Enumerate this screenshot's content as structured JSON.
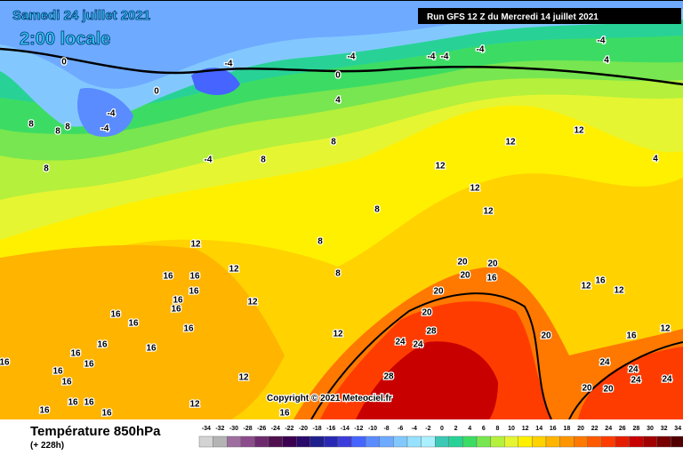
{
  "header": {
    "date": "Samedi 24 juillet 2021",
    "time": "2:00 locale",
    "run": "Run GFS 12 Z du Mercredi 14 juillet 2021"
  },
  "copyright": "Copyright © 2021 Meteociel.fr",
  "legend": {
    "title": "Température 850hPa",
    "subtitle": "(+ 228h)",
    "ticks": [
      -34,
      -32,
      -30,
      -28,
      -26,
      -24,
      -22,
      -20,
      -18,
      -16,
      -14,
      -12,
      -10,
      -8,
      -6,
      -4,
      -2,
      0,
      2,
      4,
      6,
      8,
      10,
      12,
      14,
      16,
      18,
      20,
      22,
      24,
      26,
      28,
      30,
      32,
      34
    ],
    "colors": [
      "#d3d3d3",
      "#b4b4b4",
      "#9e6e9e",
      "#8c4c8c",
      "#6e2a6e",
      "#501050",
      "#3c0050",
      "#2a0a6a",
      "#1e1e8c",
      "#2828b4",
      "#3c3cdc",
      "#4664ff",
      "#5a8cff",
      "#6eaaff",
      "#82c8ff",
      "#96e1ff",
      "#aaf0ff",
      "#3cc8b4",
      "#28d296",
      "#3cdc64",
      "#78e650",
      "#b4f03c",
      "#e6f532",
      "#fff000",
      "#ffd200",
      "#ffb400",
      "#ff9600",
      "#ff7800",
      "#ff5a00",
      "#ff3c00",
      "#e61e00",
      "#c80000",
      "#a00000",
      "#780000",
      "#500000"
    ]
  },
  "map": {
    "contour_labels": [
      0,
      0,
      0,
      -4,
      -4,
      -4,
      -4,
      -4,
      -4,
      -4,
      -4,
      -4,
      4,
      4,
      4,
      8,
      8,
      8,
      8,
      8,
      8,
      8,
      8,
      8,
      12,
      12,
      12,
      12,
      12,
      12,
      12,
      12,
      12,
      12,
      12,
      12,
      12,
      12,
      16,
      16,
      16,
      16,
      16,
      16,
      16,
      16,
      16,
      16,
      16,
      16,
      16,
      16,
      16,
      16,
      16,
      16,
      16,
      16,
      16,
      16,
      16,
      20,
      20,
      20,
      20,
      20,
      20,
      20,
      20,
      24,
      24,
      24,
      24,
      24,
      24,
      28,
      28
    ]
  }
}
